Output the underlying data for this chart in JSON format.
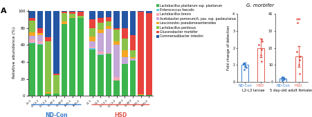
{
  "species_colors": [
    "#3cb54e",
    "#5bc8e8",
    "#f4a8b8",
    "#c4a8d8",
    "#f5a623",
    "#8bc34a",
    "#e8423c",
    "#2456a4"
  ],
  "species_labels": [
    "Lactobacillus plantarum ssp. plantarum",
    "Enterococcus faecalis",
    "Lactobacillus brevis",
    "Acetobacter pomorum/A. pas. ssp. pasteurianus",
    "Leuconostoc pseudomesenteroides",
    "Lactobacillus pentosus",
    "Gluconobacter morbifer",
    "Commensalibacter intestini"
  ],
  "nd_con_labels": [
    "L1-1",
    "L2-L3-1",
    "L2-L3-2",
    "L3-W-1",
    "L3-W-2",
    "A-d5-1",
    "A-d5-2"
  ],
  "hsd_labels": [
    "L1-1",
    "L1-2",
    "L2-L3-1",
    "L2-L3-2",
    "L3-W-1",
    "L3-W-2",
    "A-d5-1",
    "A-d5-2"
  ],
  "nd_con_data": [
    [
      0.62,
      0.6,
      0.03,
      0.03,
      0.85,
      0.92,
      0.92
    ],
    [
      0.01,
      0.01,
      0.0,
      0.0,
      0.0,
      0.0,
      0.0
    ],
    [
      0.04,
      0.03,
      0.0,
      0.0,
      0.0,
      0.0,
      0.0
    ],
    [
      0.04,
      0.08,
      0.0,
      0.0,
      0.0,
      0.0,
      0.0
    ],
    [
      0.04,
      0.02,
      0.01,
      0.0,
      0.03,
      0.01,
      0.0
    ],
    [
      0.14,
      0.0,
      0.6,
      0.22,
      0.1,
      0.04,
      0.02
    ],
    [
      0.03,
      0.06,
      0.05,
      0.01,
      0.01,
      0.02,
      0.05
    ],
    [
      0.08,
      0.2,
      0.31,
      0.74,
      0.01,
      0.01,
      0.01
    ]
  ],
  "hsd_data": [
    [
      0.55,
      0.48,
      0.5,
      0.18,
      0.38,
      0.42,
      0.01,
      0.01
    ],
    [
      0.01,
      0.01,
      0.0,
      0.0,
      0.0,
      0.0,
      0.0,
      0.0
    ],
    [
      0.02,
      0.03,
      0.01,
      0.04,
      0.0,
      0.0,
      0.0,
      0.0
    ],
    [
      0.06,
      0.22,
      0.28,
      0.38,
      0.08,
      0.02,
      0.0,
      0.0
    ],
    [
      0.06,
      0.04,
      0.03,
      0.04,
      0.08,
      0.02,
      0.01,
      0.0
    ],
    [
      0.1,
      0.08,
      0.06,
      0.14,
      0.14,
      0.08,
      0.0,
      0.0
    ],
    [
      0.1,
      0.06,
      0.05,
      0.02,
      0.12,
      0.18,
      0.97,
      0.97
    ],
    [
      0.1,
      0.08,
      0.07,
      0.2,
      0.2,
      0.28,
      0.01,
      0.02
    ]
  ],
  "scatter_l2l3_nd_con": [
    0.75,
    0.85,
    0.9,
    1.0,
    1.05,
    1.1,
    1.05
  ],
  "scatter_l2l3_hsd": [
    1.2,
    1.6,
    1.9,
    2.2,
    2.4,
    2.5
  ],
  "scatter_adult_nd_con": [
    1.0,
    1.5,
    2.0,
    2.5,
    3.0,
    3.0,
    2.0
  ],
  "scatter_adult_hsd": [
    5.0,
    10.0,
    15.0,
    18.0,
    15.0,
    13.0,
    35.0
  ],
  "bar_l2l3_nd_con": 1.0,
  "bar_l2l3_hsd": 2.0,
  "bar_adult_nd_con": 2.0,
  "bar_adult_hsd": 15.0,
  "err_l2l3_nd_con": 0.12,
  "err_l2l3_hsd": 0.55,
  "err_adult_nd_con": 0.9,
  "err_adult_hsd": 6.0,
  "ylim_l2l3": [
    0,
    4
  ],
  "ylim_adult": [
    0,
    40
  ],
  "yticks_l2l3": [
    0,
    1,
    2,
    3,
    4
  ],
  "yticks_adult": [
    0,
    10,
    20,
    30,
    40
  ],
  "nd_con_color": "#3a7dc9",
  "hsd_color": "#e05a4e",
  "title_italic": "G. morbifer",
  "xlabel_l2l3": "L2-L3 larvae",
  "xlabel_adult": "5 day-old adult females",
  "ylabel_scatter": "Fold change of detection",
  "panel_label": "A",
  "bg_color": "#f5f0eb"
}
